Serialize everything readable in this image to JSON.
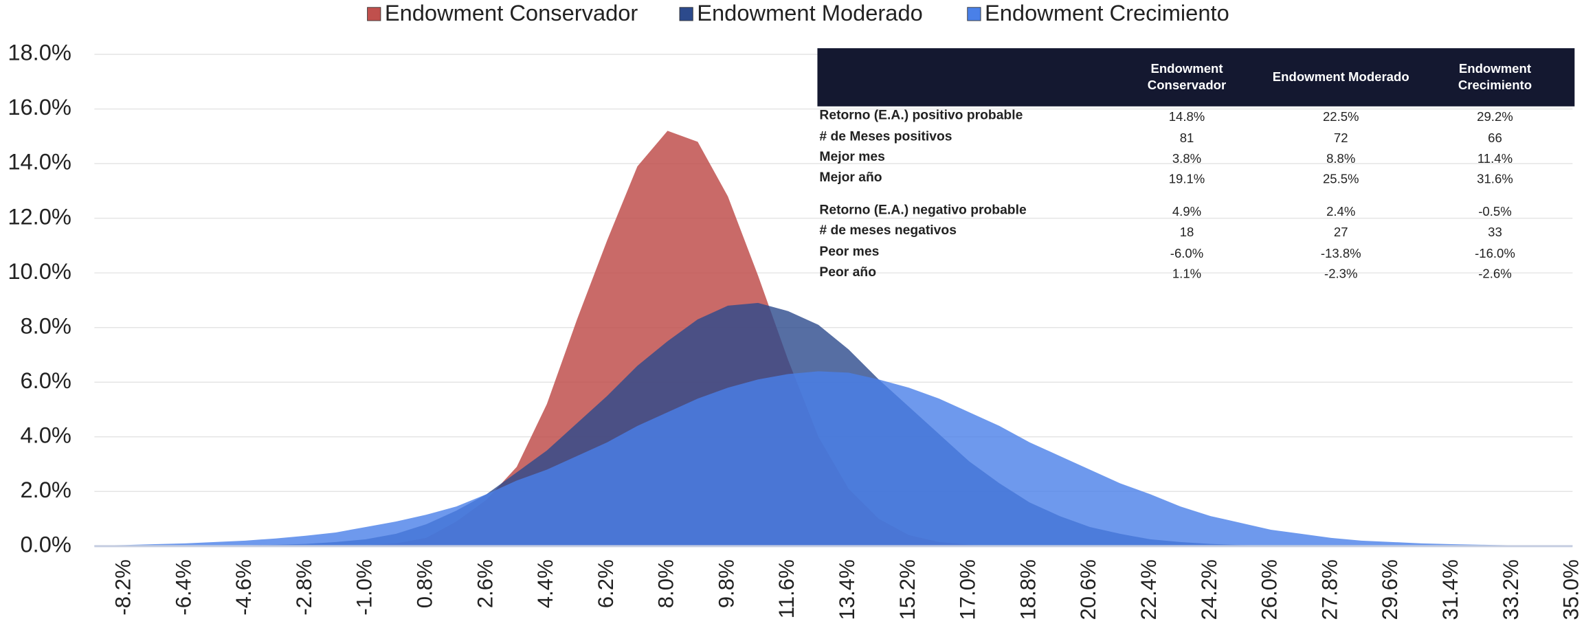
{
  "chart_data": {
    "type": "area",
    "categories": [
      null,
      "-8.2%",
      null,
      "-6.4%",
      null,
      "-4.6%",
      null,
      "-2.8%",
      null,
      "-1.0%",
      null,
      "0.8%",
      null,
      "2.6%",
      null,
      "4.4%",
      null,
      "6.2%",
      null,
      "8.0%",
      null,
      "9.8%",
      null,
      "11.6%",
      null,
      "13.4%",
      null,
      "15.2%",
      null,
      "17.0%",
      null,
      "18.8%",
      null,
      "20.6%",
      null,
      "22.4%",
      null,
      "24.2%",
      null,
      "26.0%",
      null,
      "27.8%",
      null,
      "29.6%",
      null,
      "31.4%",
      null,
      "33.2%",
      null,
      "35.0%"
    ],
    "series": [
      {
        "name": "Endowment Conservador",
        "color": "#c0504d",
        "values": [
          0,
          0,
          0,
          0,
          0,
          0,
          0,
          0,
          0,
          0.03,
          0.1,
          0.3,
          0.9,
          1.7,
          2.9,
          5.2,
          8.3,
          11.2,
          13.9,
          15.2,
          14.8,
          12.8,
          9.9,
          6.8,
          4.0,
          2.1,
          1.0,
          0.4,
          0.15,
          0.05,
          0,
          0,
          0,
          0,
          0,
          0,
          0,
          0,
          0,
          0,
          0,
          0,
          0,
          0,
          0,
          0,
          0,
          0,
          0,
          0
        ]
      },
      {
        "name": "Endowment Moderado",
        "color": "#2c4a8c",
        "values": [
          0,
          0,
          0,
          0.01,
          0.02,
          0.03,
          0.05,
          0.08,
          0.15,
          0.25,
          0.45,
          0.8,
          1.3,
          1.9,
          2.7,
          3.5,
          4.5,
          5.5,
          6.6,
          7.5,
          8.3,
          8.8,
          8.9,
          8.6,
          8.1,
          7.2,
          6.1,
          5.1,
          4.1,
          3.1,
          2.3,
          1.6,
          1.1,
          0.7,
          0.45,
          0.25,
          0.15,
          0.08,
          0.04,
          0.02,
          0.01,
          0,
          0,
          0,
          0,
          0,
          0,
          0,
          0,
          0
        ]
      },
      {
        "name": "Endowment Crecimiento",
        "color": "#4a80e8",
        "values": [
          0.02,
          0.04,
          0.07,
          0.1,
          0.15,
          0.2,
          0.28,
          0.38,
          0.5,
          0.7,
          0.9,
          1.15,
          1.45,
          1.9,
          2.4,
          2.8,
          3.3,
          3.8,
          4.4,
          4.9,
          5.4,
          5.8,
          6.1,
          6.3,
          6.4,
          6.35,
          6.1,
          5.8,
          5.4,
          4.9,
          4.4,
          3.8,
          3.3,
          2.8,
          2.3,
          1.9,
          1.45,
          1.1,
          0.85,
          0.6,
          0.45,
          0.3,
          0.2,
          0.15,
          0.1,
          0.07,
          0.05,
          0.03,
          0.02,
          0.01
        ]
      }
    ],
    "ylim": [
      0,
      18
    ],
    "yticks": [
      {
        "value": 0,
        "label": "0.0%"
      },
      {
        "value": 2,
        "label": "2.0%"
      },
      {
        "value": 4,
        "label": "4.0%"
      },
      {
        "value": 6,
        "label": "6.0%"
      },
      {
        "value": 8,
        "label": "8.0%"
      },
      {
        "value": 10,
        "label": "10.0%"
      },
      {
        "value": 12,
        "label": "12.0%"
      },
      {
        "value": 14,
        "label": "14.0%"
      },
      {
        "value": 16,
        "label": "16.0%"
      },
      {
        "value": 18,
        "label": "18.0%"
      }
    ],
    "grid": true,
    "legend": "top"
  },
  "table": {
    "header": [
      [
        "Endowment",
        "Conservador"
      ],
      [
        "Endowment Moderado"
      ],
      [
        "Endowment",
        "Crecimiento"
      ]
    ],
    "rows": [
      [
        "Retorno (E.A.) positivo probable",
        "14.8%",
        "22.5%",
        "29.2%"
      ],
      [
        "# de Meses positivos",
        "81",
        "72",
        "66"
      ],
      [
        "Mejor mes",
        "3.8%",
        "8.8%",
        "11.4%"
      ],
      [
        "Mejor año",
        "19.1%",
        "25.5%",
        "31.6%"
      ],
      [
        "Retorno (E.A.) negativo probable",
        "4.9%",
        "2.4%",
        "-0.5%"
      ],
      [
        "# de meses negativos",
        "18",
        "27",
        "33"
      ],
      [
        "Peor mes",
        "-6.0%",
        "-13.8%",
        "-16.0%"
      ],
      [
        "Peor año",
        "1.1%",
        "-2.3%",
        "-2.6%"
      ]
    ]
  }
}
